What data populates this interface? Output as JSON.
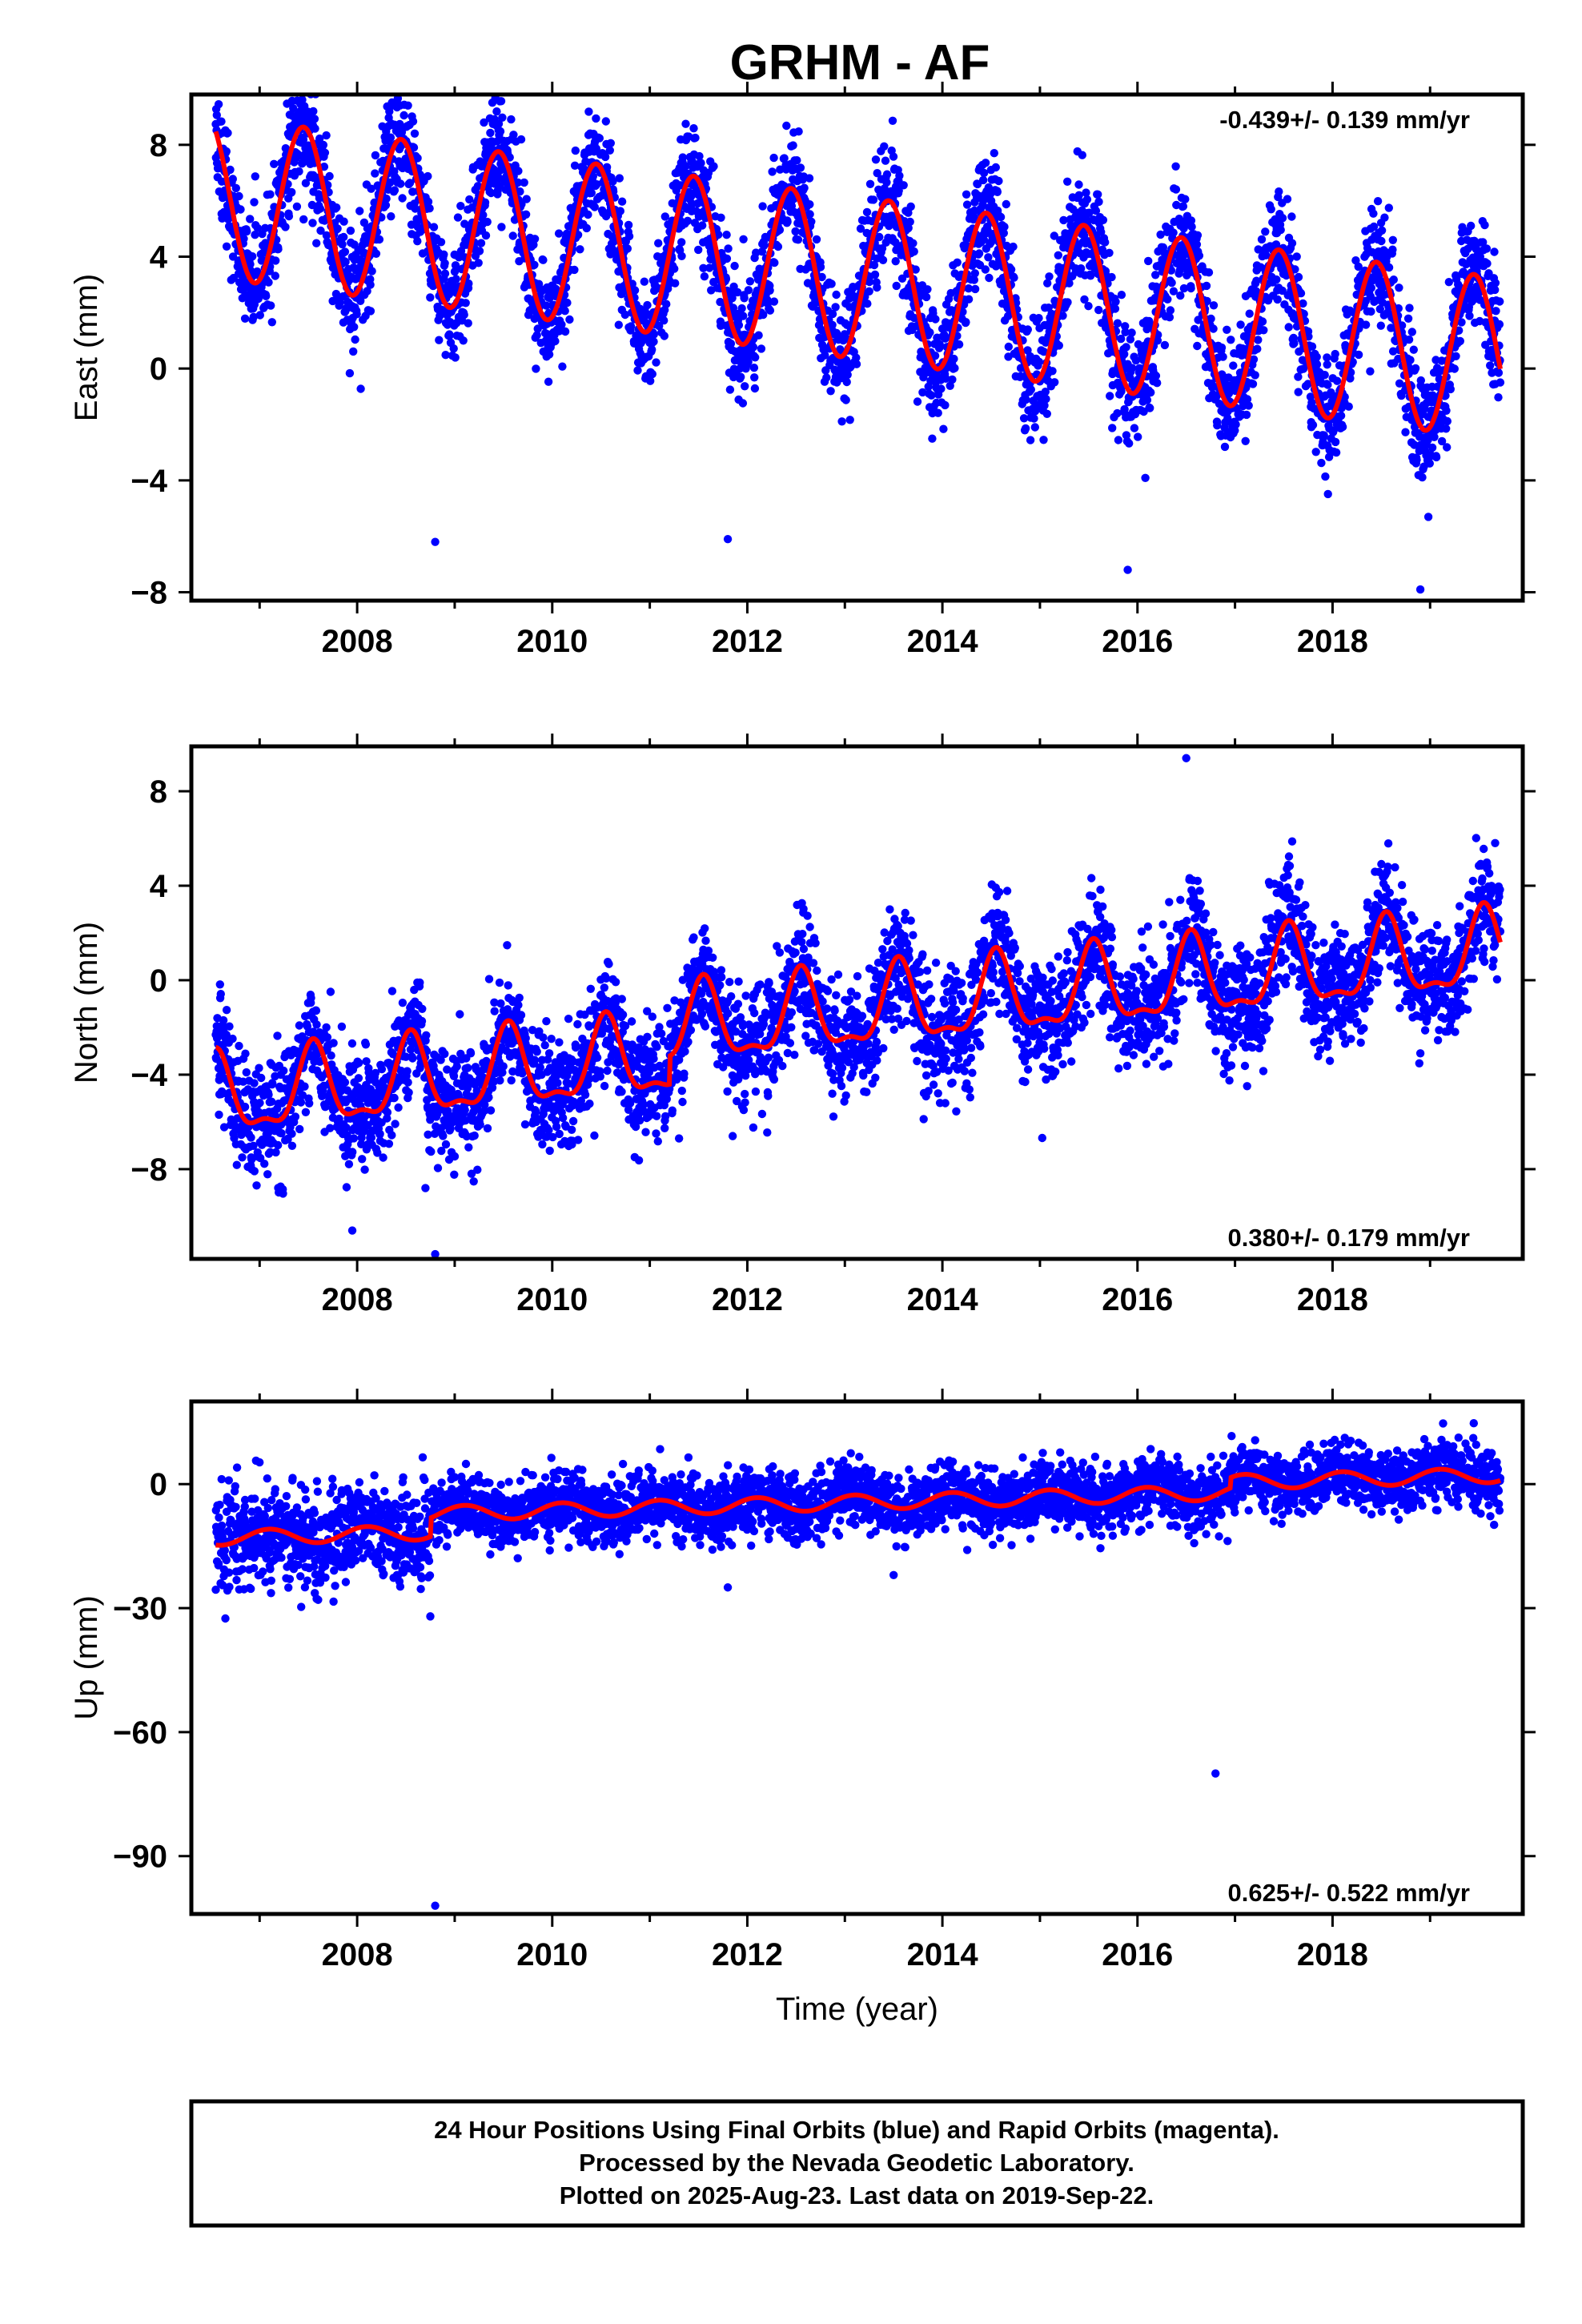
{
  "title": "GRHM - AF",
  "footer": {
    "lines": [
      "24 Hour Positions Using Final Orbits (blue) and Rapid Orbits (magenta).",
      "Processed by the Nevada Geodetic Laboratory.",
      "Plotted on 2025-Aug-23. Last data on 2019-Sep-22."
    ]
  },
  "colors": {
    "final_orbits": "#0000ff",
    "rapid_orbits": "#ff00ff",
    "model": "#ff0000",
    "frame": "#000000"
  },
  "chart_data": [
    {
      "type": "scatter",
      "panel": "east",
      "xlabel": "",
      "ylabel": "East (mm)",
      "xlim": [
        2006.3,
        2019.95
      ],
      "ylim": [
        -8.3,
        9.8
      ],
      "xticks": [
        2008,
        2010,
        2012,
        2014,
        2016,
        2018
      ],
      "yticks": [
        -8,
        -4,
        0,
        4,
        8
      ],
      "annotation": "-0.439+/- 0.139 mm/yr",
      "annotation_position": "top-right",
      "data_range": [
        2006.55,
        2019.72
      ],
      "model": {
        "offset": 3.3,
        "rate": -0.439,
        "annual_amp": 2.9,
        "annual_peak": 0.45,
        "semiannual_amp": 0.0,
        "semiannual_peak": 0.0,
        "jumps": []
      },
      "noise_sd": 1.05,
      "outliers": [
        [
          2008.8,
          -6.2
        ],
        [
          2007.55,
          9.2
        ],
        [
          2009.3,
          8.8
        ],
        [
          2015.9,
          -7.2
        ],
        [
          2018.9,
          -7.9
        ],
        [
          2011.8,
          -6.1
        ]
      ],
      "grid": false
    },
    {
      "type": "scatter",
      "panel": "north",
      "xlabel": "",
      "ylabel": "North (mm)",
      "xlim": [
        2006.3,
        2019.95
      ],
      "ylim": [
        -11.8,
        9.9
      ],
      "xticks": [
        2008,
        2010,
        2012,
        2014,
        2016,
        2018
      ],
      "yticks": [
        -8,
        -4,
        0,
        4,
        8
      ],
      "annotation": "0.380+/- 0.179 mm/yr",
      "annotation_position": "bottom-right",
      "data_range": [
        2006.55,
        2019.72
      ],
      "model": {
        "offset": -2.6,
        "rate": 0.38,
        "annual_amp": 1.6,
        "annual_peak": 0.55,
        "semiannual_amp": 0.6,
        "semiannual_peak": 0.55,
        "jumps": [
          [
            2011.2,
            1.2
          ]
        ]
      },
      "noise_sd": 1.25,
      "outliers": [
        [
          2008.8,
          -11.6
        ],
        [
          2007.95,
          -10.6
        ],
        [
          2008.7,
          -8.8
        ],
        [
          2016.5,
          9.4
        ],
        [
          2011.3,
          -6.7
        ],
        [
          2011.85,
          -6.6
        ]
      ],
      "grid": false
    },
    {
      "type": "scatter",
      "panel": "up",
      "xlabel": "Time (year)",
      "ylabel": "Up (mm)",
      "xlim": [
        2006.3,
        2019.95
      ],
      "ylim": [
        -104,
        20
      ],
      "xticks": [
        2008,
        2010,
        2012,
        2014,
        2016,
        2018
      ],
      "yticks": [
        -90,
        -60,
        -30,
        0
      ],
      "annotation": "0.625+/- 0.522 mm/yr",
      "annotation_position": "bottom-right",
      "data_range": [
        2006.55,
        2019.72
      ],
      "model": {
        "offset": -9.0,
        "rate": 0.625,
        "annual_amp": 1.8,
        "annual_peak": 0.1,
        "semiannual_amp": 0.0,
        "semiannual_peak": 0.0,
        "jumps": [
          [
            2008.75,
            4.5
          ],
          [
            2016.95,
            2.5
          ]
        ]
      },
      "noise_sd": 3.8,
      "early_extra_sd": 4.5,
      "outliers": [
        [
          2008.8,
          -102
        ],
        [
          2016.8,
          -70
        ],
        [
          2006.6,
          -24
        ],
        [
          2008.75,
          -32
        ],
        [
          2007.6,
          -28
        ],
        [
          2011.8,
          -25
        ],
        [
          2013.5,
          -22
        ]
      ],
      "grid": false
    }
  ]
}
